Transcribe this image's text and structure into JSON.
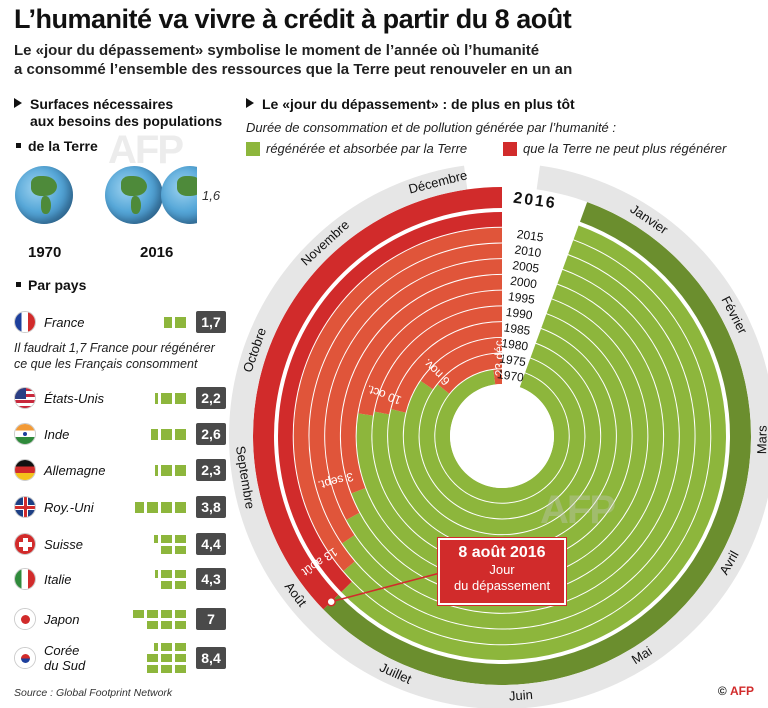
{
  "title": "L’humanité va vivre à crédit à partir du 8 août",
  "subtitle_line1": "Le «jour du dépassement» symbolise le moment de l’année où l’humanité",
  "subtitle_line2": "a consommé l’ensemble des ressources que la Terre peut renouveler en un an",
  "left": {
    "section1_line1": "Surfaces nécessaires",
    "section1_line2": "aux besoins des populations",
    "earth_label": "de la Terre",
    "globes_2016_value": "1,6",
    "year_1970": "1970",
    "year_2016": "2016",
    "by_country_label": "Par pays",
    "note_line1": "Il faudrait 1,7 France pour régénérer",
    "note_line2": "ce que les Français consomment",
    "countries": [
      {
        "name": "France",
        "value": "1,7",
        "squares": 1.7,
        "flag": "france-flag"
      },
      {
        "name": "États-Unis",
        "value": "2,2",
        "squares": 2.2,
        "flag": "usa-flag"
      },
      {
        "name": "Inde",
        "value": "2,6",
        "squares": 2.6,
        "flag": "india-flag"
      },
      {
        "name": "Allemagne",
        "value": "2,3",
        "squares": 2.3,
        "flag": "germany-flag"
      },
      {
        "name": "Roy.-Uni",
        "value": "3,8",
        "squares": 3.8,
        "flag": "uk-flag"
      },
      {
        "name": "Suisse",
        "value": "4,4",
        "squares": 4.4,
        "flag": "switzerland-flag"
      },
      {
        "name": "Italie",
        "value": "4,3",
        "squares": 4.3,
        "flag": "italy-flag"
      },
      {
        "name": "Japon",
        "value": "7",
        "squares": 7,
        "flag": "japan-flag"
      },
      {
        "name_line1": "Corée",
        "name_line2": "du Sud",
        "value": "8,4",
        "squares": 8.4,
        "flag": "south-korea-flag"
      }
    ]
  },
  "right": {
    "section_title": "Le «jour du dépassement» : de plus en plus tôt",
    "description": "Durée de consommation et de pollution générée par l’humanité :",
    "legend_green": "régénérée et absorbée par la Terre",
    "legend_red": "que la Terre ne peut plus régénérer",
    "colors": {
      "green": "#8db63c",
      "dark_green": "#6b8e2e",
      "red": "#d12b2b",
      "orange_red": "#e0553a",
      "gray": "#bdbdbd"
    },
    "months": [
      "Janvier",
      "Février",
      "Mars",
      "Avril",
      "Mai",
      "Juin",
      "Juillet",
      "Août",
      "Septembre",
      "Octobre",
      "Novembre",
      "Décembre"
    ],
    "year_highlight": "2016",
    "years": [
      "2015",
      "2010",
      "2005",
      "2000",
      "1995",
      "1990",
      "1985",
      "1980",
      "1975",
      "1970"
    ],
    "overshoot_dates": [
      {
        "year": "1970",
        "day_of_year": 357,
        "label": "23 déc."
      },
      {
        "year": "1975",
        "day_of_year": 310,
        "label": "6 nov."
      },
      {
        "year": "1980",
        "day_of_year": 305,
        "label": ""
      },
      {
        "year": "1985",
        "day_of_year": 283,
        "label": "10 oct."
      },
      {
        "year": "1990",
        "day_of_year": 280,
        "label": ""
      },
      {
        "year": "1995",
        "day_of_year": 278,
        "label": ""
      },
      {
        "year": "2000",
        "day_of_year": 246,
        "label": "3 sept."
      },
      {
        "year": "2005",
        "day_of_year": 238,
        "label": ""
      },
      {
        "year": "2010",
        "day_of_year": 232,
        "label": ""
      },
      {
        "year": "2015",
        "day_of_year": 225,
        "label": "13 août"
      },
      {
        "year": "2016",
        "day_of_year": 221,
        "label": ""
      }
    ],
    "callout_line1": "8 août 2016",
    "callout_line2": "Jour",
    "callout_line3": "du dépassement"
  },
  "source": "Source : Global Footprint Network",
  "credit": "© AFP"
}
